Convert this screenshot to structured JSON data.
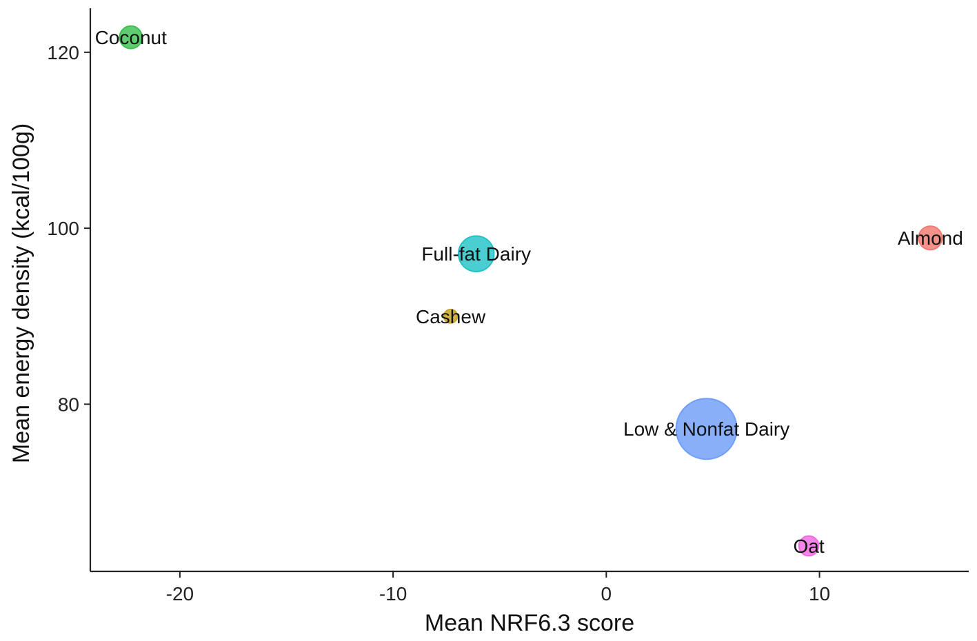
{
  "chart_data": {
    "type": "scatter",
    "title": "",
    "xlabel": "Mean NRF6.3 score",
    "ylabel": "Mean energy density (kcal/100g)",
    "xlim": [
      -24.2,
      17
    ],
    "ylim": [
      61,
      125
    ],
    "x_ticks": [
      -20,
      -10,
      0,
      10
    ],
    "x_tick_labels": [
      "-20",
      "-10",
      "0",
      "10"
    ],
    "y_ticks": [
      80,
      100,
      120
    ],
    "y_tick_labels": [
      "80",
      "100",
      "120"
    ],
    "grid": false,
    "legend": "none",
    "points": [
      {
        "label": "Coconut",
        "x": -22.3,
        "y": 121.7,
        "size": 2.2,
        "color": "#3dbf50"
      },
      {
        "label": "Almond",
        "x": 15.2,
        "y": 98.9,
        "size": 2.4,
        "color": "#f07a72"
      },
      {
        "label": "Full-fat Dairy",
        "x": -6.1,
        "y": 97.1,
        "size": 5.5,
        "color": "#22c3c7"
      },
      {
        "label": "Cashew",
        "x": -7.3,
        "y": 90.0,
        "size": 0.8,
        "color": "#c7a41f"
      },
      {
        "label": "Low & Nonfat Dairy",
        "x": 4.7,
        "y": 77.2,
        "size": 16.0,
        "color": "#6f9ef8"
      },
      {
        "label": "Oat",
        "x": 9.5,
        "y": 63.9,
        "size": 1.7,
        "color": "#ef6ae2"
      }
    ]
  }
}
